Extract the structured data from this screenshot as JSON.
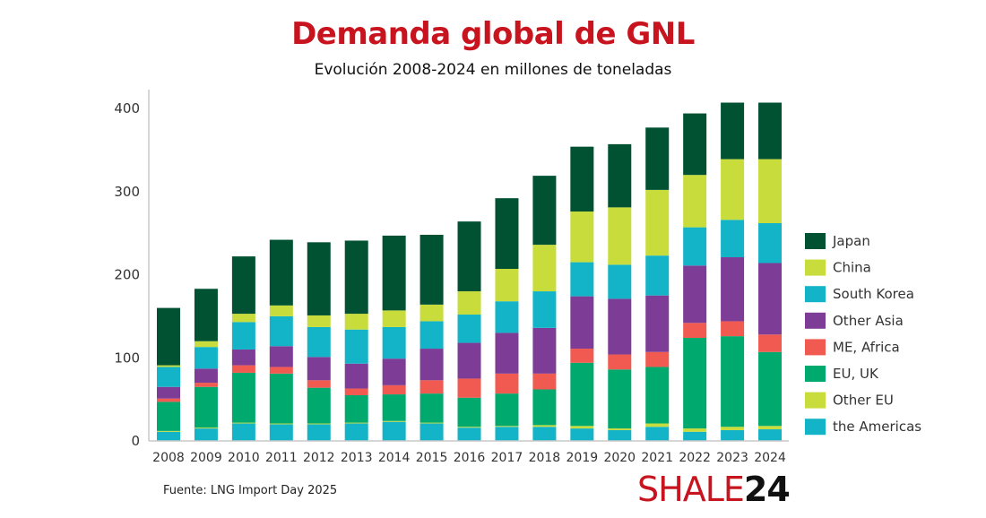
{
  "header": {
    "title": "Demanda global de GNL",
    "subtitle": "Evolución 2008-2024 en millones de toneladas"
  },
  "footer": {
    "source": "Fuente: LNG Import Day 2025",
    "logo_part1": "SHALE",
    "logo_part2": "24"
  },
  "chart_data": {
    "type": "bar",
    "stacked": true,
    "title": "Demanda global de GNL",
    "subtitle": "Evolución 2008-2024 en millones de toneladas",
    "xlabel": "",
    "ylabel": "",
    "ylim": [
      0,
      420
    ],
    "yticks": [
      0,
      100,
      200,
      300,
      400
    ],
    "grid": false,
    "legend_position": "right",
    "categories": [
      "2008",
      "2009",
      "2010",
      "2011",
      "2012",
      "2013",
      "2014",
      "2015",
      "2016",
      "2017",
      "2018",
      "2019",
      "2020",
      "2021",
      "2022",
      "2023",
      "2024"
    ],
    "series": [
      {
        "name": "the Americas",
        "color": "#14b4c8",
        "values": [
          11,
          15,
          21,
          20,
          20,
          21,
          23,
          21,
          16,
          17,
          17,
          15,
          13,
          17,
          11,
          13,
          14
        ]
      },
      {
        "name": "Other EU",
        "color": "#c8dc3c",
        "values": [
          1,
          1,
          1,
          1,
          1,
          1,
          1,
          1,
          1,
          1,
          2,
          3,
          2,
          4,
          4,
          4,
          4
        ]
      },
      {
        "name": "EU, UK",
        "color": "#00a96e",
        "values": [
          35,
          49,
          60,
          60,
          43,
          33,
          32,
          35,
          35,
          39,
          43,
          76,
          71,
          68,
          109,
          109,
          89
        ]
      },
      {
        "name": "ME, Africa",
        "color": "#f05a50",
        "values": [
          4,
          5,
          9,
          8,
          9,
          8,
          11,
          16,
          23,
          24,
          19,
          17,
          18,
          18,
          18,
          18,
          21
        ]
      },
      {
        "name": "Other Asia",
        "color": "#7d3c96",
        "values": [
          14,
          17,
          19,
          25,
          28,
          30,
          32,
          38,
          43,
          49,
          55,
          63,
          67,
          68,
          69,
          77,
          86
        ]
      },
      {
        "name": "South Korea",
        "color": "#14b4c8",
        "values": [
          24,
          26,
          33,
          36,
          36,
          41,
          38,
          33,
          34,
          38,
          44,
          41,
          41,
          48,
          46,
          45,
          48
        ]
      },
      {
        "name": "China",
        "color": "#c8dc3c",
        "values": [
          2,
          7,
          10,
          13,
          14,
          19,
          20,
          20,
          28,
          39,
          56,
          61,
          69,
          79,
          63,
          73,
          77
        ]
      },
      {
        "name": "Japan",
        "color": "#005232",
        "values": [
          69,
          63,
          69,
          79,
          88,
          88,
          90,
          84,
          84,
          85,
          83,
          78,
          76,
          75,
          74,
          68,
          68
        ]
      }
    ],
    "legend_order": [
      "Japan",
      "China",
      "South Korea",
      "Other Asia",
      "ME, Africa",
      "EU, UK",
      "Other EU",
      "the Americas"
    ]
  }
}
